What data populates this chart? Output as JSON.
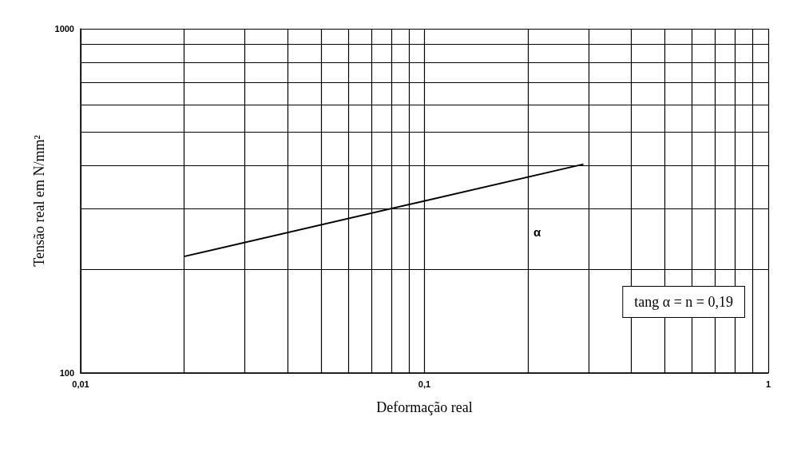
{
  "chart_data": {
    "type": "line",
    "xlabel": "Deformação real",
    "ylabel": "Tensão real em N/mm²",
    "log": "xy",
    "grid": true,
    "marker": "none",
    "line_style": "solid",
    "x": [
      0.02,
      0.29
    ],
    "series": [
      {
        "color": "#000000",
        "values": [
          218,
          404
        ]
      }
    ],
    "xlim": [
      0.01,
      1
    ],
    "ylim": [
      100,
      1000
    ],
    "xticks": [
      {
        "value": 0.01,
        "label": "0,01"
      },
      {
        "value": 0.02,
        "label": null
      },
      {
        "value": 0.03,
        "label": null
      },
      {
        "value": 0.04,
        "label": null
      },
      {
        "value": 0.05,
        "label": null
      },
      {
        "value": 0.06,
        "label": null
      },
      {
        "value": 0.07,
        "label": null
      },
      {
        "value": 0.08,
        "label": null
      },
      {
        "value": 0.09,
        "label": null
      },
      {
        "value": 0.1,
        "label": "0,1"
      },
      {
        "value": 0.2,
        "label": null
      },
      {
        "value": 0.3,
        "label": null
      },
      {
        "value": 0.4,
        "label": null
      },
      {
        "value": 0.5,
        "label": null
      },
      {
        "value": 0.6,
        "label": null
      },
      {
        "value": 0.7,
        "label": null
      },
      {
        "value": 0.8,
        "label": null
      },
      {
        "value": 0.9,
        "label": null
      },
      1
    ],
    "yticks": [
      100,
      {
        "value": 200,
        "label": null
      },
      {
        "value": 300,
        "label": null
      },
      {
        "value": 400,
        "label": null
      },
      {
        "value": 500,
        "label": null
      },
      {
        "value": 600,
        "label": null
      },
      {
        "value": 700,
        "label": null
      },
      {
        "value": 800,
        "label": null
      },
      {
        "value": 900,
        "label": null
      },
      1000
    ],
    "annotations": [
      "α",
      "tang α = n = 0,19"
    ]
  }
}
